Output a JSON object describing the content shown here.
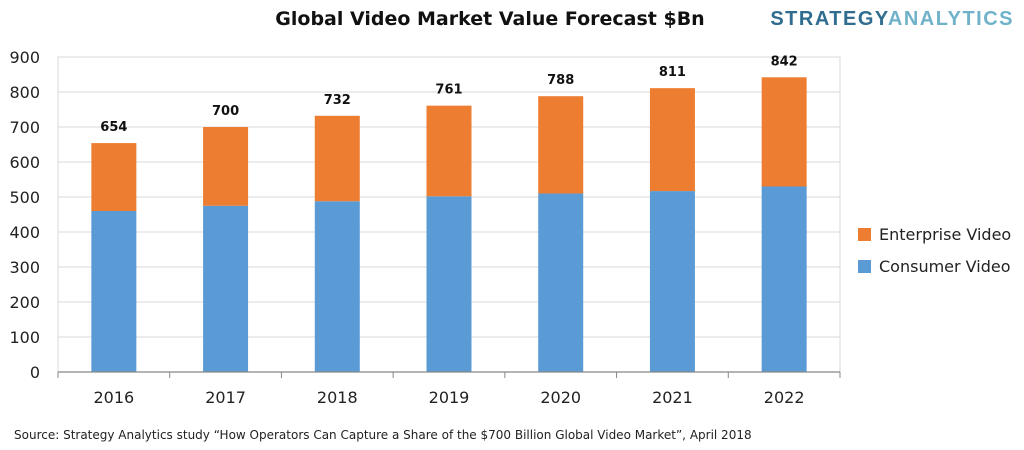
{
  "brand": {
    "part1": "STRATEGY",
    "part2": "ANALYTICS"
  },
  "source_note": "Source: Strategy Analytics study “How Operators Can Capture a Share of the $700 Billion Global Video Market”, April 2018",
  "colors": {
    "consumer": "#5b9bd5",
    "enterprise": "#ed7d31",
    "grid": "#d9d9d9",
    "axis": "#888888"
  },
  "chart_data": {
    "type": "bar",
    "stacked": true,
    "title": "Global Video Market Value Forecast $Bn",
    "categories": [
      "2016",
      "2017",
      "2018",
      "2019",
      "2020",
      "2021",
      "2022"
    ],
    "series": [
      {
        "name": "Consumer Video",
        "values": [
          460,
          475,
          488,
          502,
          510,
          517,
          530
        ]
      },
      {
        "name": "Enterprise Video",
        "values": [
          194,
          225,
          244,
          259,
          278,
          294,
          312
        ]
      }
    ],
    "totals": [
      "654",
      "700",
      "732",
      "761",
      "788",
      "811",
      "842"
    ],
    "ylim": [
      0,
      900
    ],
    "yticks": [
      "0",
      "100",
      "200",
      "300",
      "400",
      "500",
      "600",
      "700",
      "800",
      "900"
    ],
    "grid": true,
    "legend": "right"
  }
}
